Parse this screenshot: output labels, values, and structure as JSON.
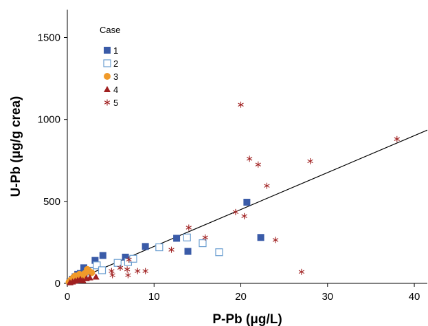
{
  "chart_data": {
    "type": "scatter",
    "xlabel": "P-Pb (μg/L)",
    "ylabel": "U-Pb (μg/g crea)",
    "xlim": [
      0,
      41.5
    ],
    "ylim": [
      0,
      1670
    ],
    "x_ticks": [
      0,
      10,
      20,
      30,
      40
    ],
    "y_ticks": [
      0,
      500,
      1000,
      1500
    ],
    "legend_title": "Case",
    "legend_position": "top-left",
    "grid": false,
    "regression_line": {
      "x": [
        0,
        41.5
      ],
      "y": [
        0,
        935
      ]
    },
    "series": [
      {
        "name": "1",
        "marker": "filled-square",
        "color": "#3a5ba8",
        "points": [
          [
            0.3,
            10
          ],
          [
            0.6,
            25
          ],
          [
            0.9,
            40
          ],
          [
            1.2,
            55
          ],
          [
            1.5,
            60
          ],
          [
            1.9,
            95
          ],
          [
            2.2,
            70
          ],
          [
            2.6,
            80
          ],
          [
            3.2,
            140
          ],
          [
            4.1,
            170
          ],
          [
            6.7,
            160
          ],
          [
            9.0,
            225
          ],
          [
            12.6,
            275
          ],
          [
            13.9,
            195
          ],
          [
            20.7,
            495
          ],
          [
            22.3,
            280
          ]
        ]
      },
      {
        "name": "2",
        "marker": "open-square",
        "color": "#6a9ed0",
        "points": [
          [
            1.2,
            25
          ],
          [
            1.9,
            45
          ],
          [
            2.6,
            75
          ],
          [
            3.4,
            110
          ],
          [
            4.0,
            80
          ],
          [
            5.8,
            125
          ],
          [
            7.0,
            130
          ],
          [
            7.6,
            150
          ],
          [
            10.6,
            220
          ],
          [
            13.8,
            280
          ],
          [
            15.6,
            245
          ],
          [
            17.5,
            190
          ]
        ]
      },
      {
        "name": "3",
        "marker": "filled-circle",
        "color": "#f09a2a",
        "points": [
          [
            0.2,
            8
          ],
          [
            0.4,
            20
          ],
          [
            0.7,
            35
          ],
          [
            0.9,
            45
          ],
          [
            1.1,
            30
          ],
          [
            1.4,
            55
          ],
          [
            1.7,
            40
          ],
          [
            2.0,
            60
          ],
          [
            2.3,
            85
          ],
          [
            2.5,
            75
          ],
          [
            2.8,
            65
          ]
        ]
      },
      {
        "name": "4",
        "marker": "filled-triangle",
        "color": "#a02020",
        "points": [
          [
            0.3,
            5
          ],
          [
            0.6,
            10
          ],
          [
            0.9,
            15
          ],
          [
            1.2,
            20
          ],
          [
            1.5,
            25
          ],
          [
            1.8,
            18
          ],
          [
            2.2,
            30
          ],
          [
            2.6,
            35
          ],
          [
            3.3,
            40
          ]
        ]
      },
      {
        "name": "5",
        "marker": "star",
        "color": "#a02020",
        "points": [
          [
            5.1,
            75
          ],
          [
            5.2,
            50
          ],
          [
            6.1,
            95
          ],
          [
            6.9,
            85
          ],
          [
            7.0,
            50
          ],
          [
            7.1,
            145
          ],
          [
            8.1,
            75
          ],
          [
            9.0,
            75
          ],
          [
            12.0,
            205
          ],
          [
            14.0,
            340
          ],
          [
            15.9,
            280
          ],
          [
            19.4,
            435
          ],
          [
            20.4,
            410
          ],
          [
            20.0,
            1090
          ],
          [
            21.0,
            760
          ],
          [
            22.0,
            725
          ],
          [
            23.0,
            595
          ],
          [
            24.0,
            265
          ],
          [
            27.0,
            70
          ],
          [
            28.0,
            745
          ],
          [
            38.0,
            880
          ]
        ]
      }
    ]
  }
}
